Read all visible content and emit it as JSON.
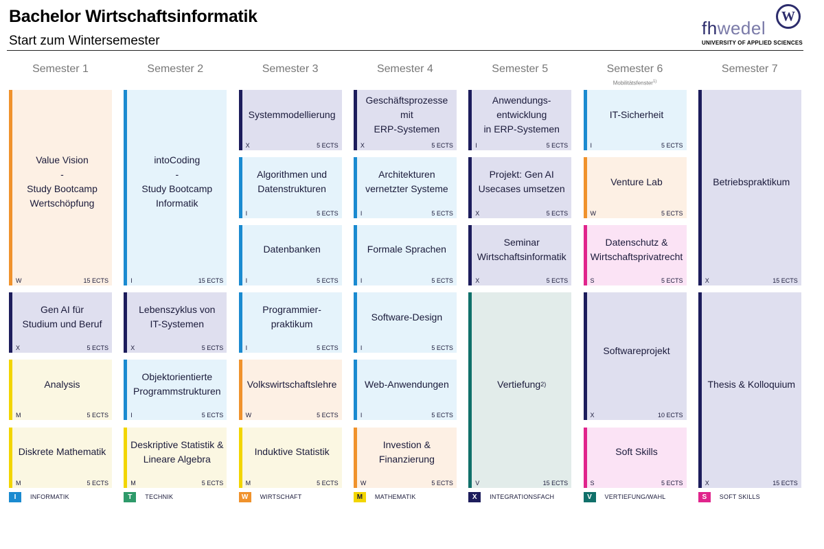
{
  "header": {
    "title": "Bachelor Wirtschaftsinformatik",
    "subtitle": "Start zum Wintersemester"
  },
  "logo": {
    "word_dark": "fh",
    "word_light": "wedel",
    "badge_letter": "W",
    "tagline": "UNIVERSITY OF APPLIED SCIENCES"
  },
  "category_colors": {
    "I": {
      "accent": "#1a8ad0",
      "bg": "#e5f3fb"
    },
    "T": {
      "accent": "#2e9a6a",
      "bg": "#e6f4ec"
    },
    "W": {
      "accent": "#f0922c",
      "bg": "#fdf0e4"
    },
    "M": {
      "accent": "#f2d500",
      "bg": "#fbf7e2"
    },
    "X": {
      "accent": "#1d1d5c",
      "bg": "#dfdfef"
    },
    "V": {
      "accent": "#10706a",
      "bg": "#e2ecea"
    },
    "S": {
      "accent": "#e0248c",
      "bg": "#fbe3f5"
    }
  },
  "semesters": [
    {
      "label": "Semester 1",
      "note": ""
    },
    {
      "label": "Semester 2",
      "note": ""
    },
    {
      "label": "Semester 3",
      "note": ""
    },
    {
      "label": "Semester 4",
      "note": ""
    },
    {
      "label": "Semester 5",
      "note": ""
    },
    {
      "label": "Semester 6",
      "note": "Mobilitätsfenster",
      "note_sup": "1)"
    },
    {
      "label": "Semester 7",
      "note": ""
    }
  ],
  "modules": [
    {
      "sem": 1,
      "start": 0,
      "span": 3,
      "name": "Value Vision\n-\nStudy Bootcamp\nWertschöpfung",
      "cat": "W",
      "ects": "15 ECTS"
    },
    {
      "sem": 1,
      "start": 3,
      "span": 1,
      "name": "Gen AI für\nStudium und Beruf",
      "cat": "X",
      "ects": "5 ECTS"
    },
    {
      "sem": 1,
      "start": 4,
      "span": 1,
      "name": "Analysis",
      "cat": "M",
      "ects": "5 ECTS"
    },
    {
      "sem": 1,
      "start": 5,
      "span": 1,
      "name": "Diskrete Mathematik",
      "cat": "M",
      "ects": "5 ECTS"
    },
    {
      "sem": 2,
      "start": 0,
      "span": 3,
      "name": "intoCoding\n-\nStudy Bootcamp\nInformatik",
      "cat": "I",
      "ects": "15 ECTS"
    },
    {
      "sem": 2,
      "start": 3,
      "span": 1,
      "name": "Lebenszyklus von\nIT-Systemen",
      "cat": "X",
      "ects": "5 ECTS"
    },
    {
      "sem": 2,
      "start": 4,
      "span": 1,
      "name": "Objektorientierte\nProgrammstrukturen",
      "cat": "I",
      "ects": "5 ECTS"
    },
    {
      "sem": 2,
      "start": 5,
      "span": 1,
      "name": "Deskriptive Statistik &\nLineare Algebra",
      "cat": "M",
      "ects": "5 ECTS"
    },
    {
      "sem": 3,
      "start": 0,
      "span": 1,
      "name": "Systemmodellierung",
      "cat": "X",
      "ects": "5 ECTS"
    },
    {
      "sem": 3,
      "start": 1,
      "span": 1,
      "name": "Algorithmen und\nDatenstrukturen",
      "cat": "I",
      "ects": "5 ECTS"
    },
    {
      "sem": 3,
      "start": 2,
      "span": 1,
      "name": "Datenbanken",
      "cat": "I",
      "ects": "5 ECTS"
    },
    {
      "sem": 3,
      "start": 3,
      "span": 1,
      "name": "Programmier-\npraktikum",
      "cat": "I",
      "ects": "5 ECTS"
    },
    {
      "sem": 3,
      "start": 4,
      "span": 1,
      "name": "Volkswirtschaftslehre",
      "cat": "W",
      "ects": "5 ECTS"
    },
    {
      "sem": 3,
      "start": 5,
      "span": 1,
      "name": "Induktive Statistik",
      "cat": "M",
      "ects": "5 ECTS"
    },
    {
      "sem": 4,
      "start": 0,
      "span": 1,
      "name": "Geschäftsprozesse mit\nERP-Systemen",
      "cat": "X",
      "ects": "5 ECTS"
    },
    {
      "sem": 4,
      "start": 1,
      "span": 1,
      "name": "Architekturen\nvernetzter Systeme",
      "cat": "I",
      "ects": "5 ECTS"
    },
    {
      "sem": 4,
      "start": 2,
      "span": 1,
      "name": "Formale Sprachen",
      "cat": "I",
      "ects": "5 ECTS"
    },
    {
      "sem": 4,
      "start": 3,
      "span": 1,
      "name": "Software-Design",
      "cat": "I",
      "ects": "5 ECTS"
    },
    {
      "sem": 4,
      "start": 4,
      "span": 1,
      "name": "Web-Anwendungen",
      "cat": "I",
      "ects": "5 ECTS"
    },
    {
      "sem": 4,
      "start": 5,
      "span": 1,
      "name": "Investion &\nFinanzierung",
      "cat": "W",
      "ects": "5 ECTS"
    },
    {
      "sem": 5,
      "start": 0,
      "span": 1,
      "name": "Anwendungs-\nentwicklung\nin ERP-Systemen",
      "cat": "I",
      "ects": "5 ECTS",
      "accent_override": "X"
    },
    {
      "sem": 5,
      "start": 1,
      "span": 1,
      "name": "Projekt: Gen AI\nUsecases umsetzen",
      "cat": "X",
      "ects": "5 ECTS"
    },
    {
      "sem": 5,
      "start": 2,
      "span": 1,
      "name": "Seminar\nWirtschaftsinformatik",
      "cat": "X",
      "ects": "5 ECTS"
    },
    {
      "sem": 5,
      "start": 3,
      "span": 3,
      "name": "Vertiefung",
      "name_sup": "2)",
      "cat": "V",
      "ects": "15 ECTS"
    },
    {
      "sem": 6,
      "start": 0,
      "span": 1,
      "name": "IT-Sicherheit",
      "cat": "I",
      "ects": "5 ECTS"
    },
    {
      "sem": 6,
      "start": 1,
      "span": 1,
      "name": "Venture Lab",
      "cat": "W",
      "ects": "5 ECTS"
    },
    {
      "sem": 6,
      "start": 2,
      "span": 1,
      "name": "Datenschutz &\nWirtschaftsprivatrecht",
      "cat": "S",
      "ects": "5 ECTS"
    },
    {
      "sem": 6,
      "start": 3,
      "span": 2,
      "name": "Softwareprojekt",
      "cat": "X",
      "ects": "10 ECTS"
    },
    {
      "sem": 6,
      "start": 5,
      "span": 1,
      "name": "Soft Skills",
      "cat": "S",
      "ects": "5 ECTS"
    },
    {
      "sem": 7,
      "start": 0,
      "span": 3,
      "name": "Betriebspraktikum",
      "cat": "X",
      "ects": "15 ECTS"
    },
    {
      "sem": 7,
      "start": 3,
      "span": 3,
      "name": "Thesis & Kolloquium",
      "cat": "X",
      "ects": "15 ECTS"
    }
  ],
  "legend": [
    {
      "code": "I",
      "label": "INFORMATIK"
    },
    {
      "code": "T",
      "label": "TECHNIK"
    },
    {
      "code": "W",
      "label": "WIRTSCHAFT"
    },
    {
      "code": "M",
      "label": "MATHEMATIK"
    },
    {
      "code": "X",
      "label": "INTEGRATIONSFACH"
    },
    {
      "code": "V",
      "label": "VERTIEFUNG/WAHL"
    },
    {
      "code": "S",
      "label": "SOFT SKILLS"
    }
  ]
}
